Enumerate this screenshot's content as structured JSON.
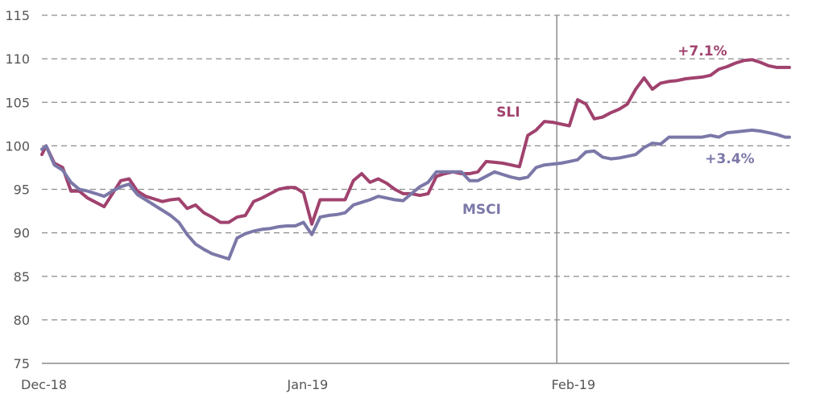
{
  "chart_data": {
    "type": "line",
    "ylim": [
      75,
      115
    ],
    "yticks": [
      75,
      80,
      85,
      90,
      95,
      100,
      105,
      110,
      115
    ],
    "xrange": [
      0,
      90
    ],
    "xticks": [
      {
        "x": 0,
        "label": "Dec-18"
      },
      {
        "x": 32,
        "label": "Jan-19"
      },
      {
        "x": 64,
        "label": "Feb-19"
      }
    ],
    "reference_line_x": 62,
    "grid": true,
    "series": [
      {
        "name": "SLI",
        "color": "#a0426e",
        "annotation": "+7.1%",
        "x": [
          0,
          0.5,
          1.5,
          2.5,
          3.5,
          4.5,
          5.5,
          6.5,
          7.5,
          8.5,
          9.5,
          10.5,
          11.5,
          12.5,
          13.5,
          14.5,
          15.5,
          16.5,
          17.5,
          18.5,
          19.5,
          20.5,
          21.5,
          22.5,
          23.5,
          24.5,
          25.5,
          26.5,
          27.5,
          28.5,
          29.5,
          30.5,
          31.5,
          32.5,
          33.5,
          34.5,
          35.5,
          36.5,
          37.5,
          38.5,
          39.5,
          40.5,
          41.5,
          42.5,
          43.5,
          44.5,
          45.5,
          46.5,
          47.5,
          48.5,
          49.5,
          50.5,
          51.5,
          52.5,
          53.5,
          54.5,
          55.5,
          56.5,
          57.5,
          58.5,
          59.5,
          60.5,
          61.5,
          62.5,
          63.5,
          64.5,
          65.5,
          66.5,
          67.5,
          68.5,
          69.5,
          70.5,
          71.5,
          72.5,
          73.5,
          74.5,
          75.5,
          76.5,
          77.5,
          78.5,
          79.5,
          80.5,
          81.5,
          82.5,
          83.5,
          84.5,
          85.5,
          86.5,
          87.5,
          88.5,
          89.5,
          90
        ],
        "values": [
          99.0,
          100.0,
          98.0,
          97.5,
          94.8,
          94.8,
          94.0,
          93.5,
          93.0,
          94.5,
          96.0,
          96.2,
          94.8,
          94.2,
          93.9,
          93.6,
          93.8,
          93.9,
          92.8,
          93.2,
          92.3,
          91.8,
          91.2,
          91.2,
          91.8,
          92.0,
          93.6,
          94.0,
          94.5,
          95.0,
          95.2,
          95.2,
          94.6,
          91.0,
          93.8,
          93.8,
          93.8,
          93.8,
          96.0,
          96.8,
          95.8,
          96.2,
          95.7,
          95.0,
          94.5,
          94.5,
          94.3,
          94.5,
          96.5,
          96.8,
          97.0,
          96.8,
          96.8,
          97.0,
          98.2,
          98.1,
          98.0,
          97.8,
          97.6,
          101.2,
          101.8,
          102.8,
          102.7,
          102.5,
          102.3,
          105.3,
          104.8,
          103.1,
          103.3,
          103.8,
          104.2,
          104.8,
          106.5,
          107.8,
          106.5,
          107.2,
          107.4,
          107.5,
          107.7,
          107.8,
          107.9,
          108.1,
          108.8,
          109.1,
          109.5,
          109.8,
          109.9,
          109.6,
          109.2,
          109.0,
          109.0,
          109.0
        ]
      },
      {
        "name": "MSCI",
        "color": "#7b78a8",
        "annotation": "+3.4%",
        "x": [
          0,
          0.5,
          1.5,
          2.5,
          3.5,
          4.5,
          5.5,
          6.5,
          7.5,
          8.5,
          9.5,
          10.5,
          11.5,
          12.5,
          13.5,
          14.5,
          15.5,
          16.5,
          17.5,
          18.5,
          19.5,
          20.5,
          21.5,
          22.5,
          23.5,
          24.5,
          25.5,
          26.5,
          27.5,
          28.5,
          29.5,
          30.5,
          31.5,
          32.5,
          33.5,
          34.5,
          35.5,
          36.5,
          37.5,
          38.5,
          39.5,
          40.5,
          41.5,
          42.5,
          43.5,
          44.5,
          45.5,
          46.5,
          47.5,
          48.5,
          49.5,
          50.5,
          51.5,
          52.5,
          53.5,
          54.5,
          55.5,
          56.5,
          57.5,
          58.5,
          59.5,
          60.5,
          61.5,
          62.5,
          63.5,
          64.5,
          65.5,
          66.5,
          67.5,
          68.5,
          69.5,
          70.5,
          71.5,
          72.5,
          73.5,
          74.5,
          75.5,
          76.5,
          77.5,
          78.5,
          79.5,
          80.5,
          81.5,
          82.5,
          83.5,
          84.5,
          85.5,
          86.5,
          87.5,
          88.5,
          89.5,
          90
        ],
        "values": [
          99.6,
          100.0,
          97.8,
          97.2,
          95.8,
          95.0,
          94.8,
          94.5,
          94.2,
          94.8,
          95.3,
          95.6,
          94.4,
          93.8,
          93.2,
          92.6,
          92.0,
          91.2,
          89.8,
          88.7,
          88.1,
          87.6,
          87.3,
          87.0,
          89.4,
          89.9,
          90.2,
          90.4,
          90.5,
          90.7,
          90.8,
          90.8,
          91.2,
          89.8,
          91.8,
          92.0,
          92.1,
          92.3,
          93.2,
          93.5,
          93.8,
          94.2,
          94.0,
          93.8,
          93.7,
          94.5,
          95.3,
          95.8,
          97.0,
          97.0,
          97.0,
          97.0,
          96.0,
          96.0,
          96.5,
          97.0,
          96.7,
          96.4,
          96.2,
          96.4,
          97.5,
          97.8,
          97.9,
          98.0,
          98.2,
          98.4,
          99.3,
          99.4,
          98.7,
          98.5,
          98.6,
          98.8,
          99.0,
          99.8,
          100.3,
          100.2,
          101.0,
          101.0,
          101.0,
          101.0,
          101.0,
          101.2,
          101.0,
          101.5,
          101.6,
          101.7,
          101.8,
          101.7,
          101.5,
          101.3,
          101.0,
          101.0
        ]
      }
    ]
  }
}
